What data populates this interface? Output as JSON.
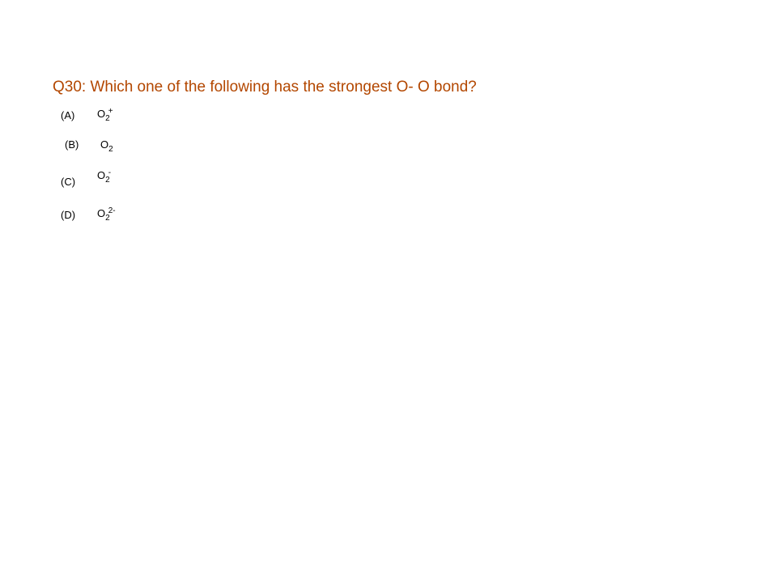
{
  "question": {
    "text": "Q30: Which one of the following has the strongest O- O bond?"
  },
  "options": [
    {
      "label": "(A)",
      "element": "O",
      "subscript": "2",
      "superscript": "+"
    },
    {
      "label": "(B)",
      "element": "O",
      "subscript": "2",
      "superscript": ""
    },
    {
      "label": "(C)",
      "element": "O",
      "subscript": "2",
      "superscript": "-"
    },
    {
      "label": "(D)",
      "element": "O",
      "subscript": "2",
      "superscript": "2-"
    }
  ]
}
